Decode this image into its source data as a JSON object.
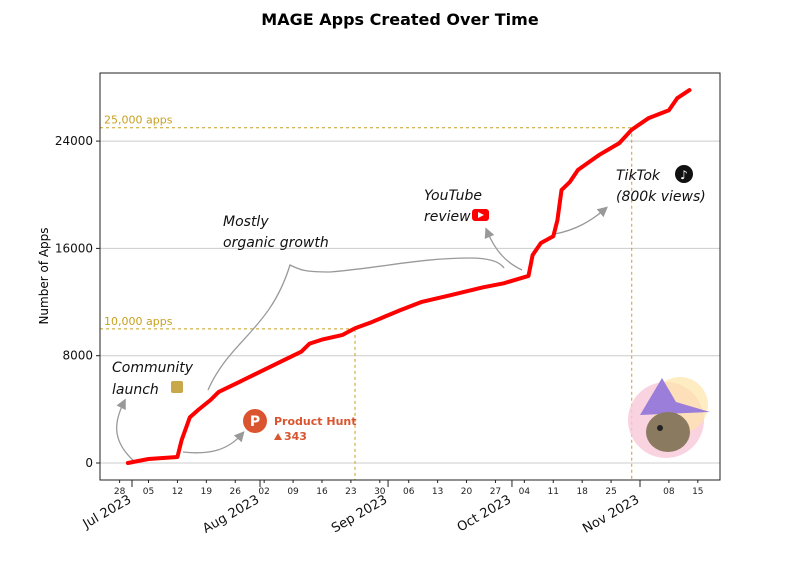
{
  "chart_data": {
    "type": "line",
    "title": "MAGE Apps Created Over Time",
    "xlabel": "",
    "ylabel": "Number of Apps",
    "ylim": [
      -1200,
      29000
    ],
    "xlim": [
      "2023-06-26",
      "2023-11-19"
    ],
    "yticks": [
      0,
      8000,
      16000,
      24000
    ],
    "ytick_labels": [
      "0",
      "8000",
      "16000",
      "24000"
    ],
    "grid": "horizontal",
    "line_color": "#ff0000",
    "minor_ticks": [
      {
        "date": "2023-06-28",
        "label": "28"
      },
      {
        "date": "2023-07-05",
        "label": "05"
      },
      {
        "date": "2023-07-12",
        "label": "12"
      },
      {
        "date": "2023-07-19",
        "label": "19"
      },
      {
        "date": "2023-07-26",
        "label": "26"
      },
      {
        "date": "2023-08-02",
        "label": "02"
      },
      {
        "date": "2023-08-09",
        "label": "09"
      },
      {
        "date": "2023-08-16",
        "label": "16"
      },
      {
        "date": "2023-08-23",
        "label": "23"
      },
      {
        "date": "2023-08-30",
        "label": "30"
      },
      {
        "date": "2023-09-06",
        "label": "06"
      },
      {
        "date": "2023-09-13",
        "label": "13"
      },
      {
        "date": "2023-09-20",
        "label": "20"
      },
      {
        "date": "2023-09-27",
        "label": "27"
      },
      {
        "date": "2023-10-04",
        "label": "04"
      },
      {
        "date": "2023-10-11",
        "label": "11"
      },
      {
        "date": "2023-10-18",
        "label": "18"
      },
      {
        "date": "2023-10-25",
        "label": "25"
      },
      {
        "date": "2023-11-08",
        "label": "08"
      },
      {
        "date": "2023-11-15",
        "label": "15"
      }
    ],
    "major_ticks": [
      {
        "date": "2023-07-01",
        "label": "Jul 2023"
      },
      {
        "date": "2023-08-01",
        "label": "Aug 2023"
      },
      {
        "date": "2023-09-01",
        "label": "Sep 2023"
      },
      {
        "date": "2023-10-01",
        "label": "Oct 2023"
      },
      {
        "date": "2023-11-01",
        "label": "Nov 2023"
      }
    ],
    "series": [
      {
        "x": [
          "2023-06-30",
          "2023-07-05",
          "2023-07-12",
          "2023-07-13",
          "2023-07-15",
          "2023-07-17",
          "2023-07-20",
          "2023-07-22",
          "2023-07-27",
          "2023-08-01",
          "2023-08-06",
          "2023-08-11",
          "2023-08-13",
          "2023-08-16",
          "2023-08-21",
          "2023-08-24",
          "2023-08-28",
          "2023-09-04",
          "2023-09-09",
          "2023-09-16",
          "2023-09-24",
          "2023-09-29",
          "2023-10-05",
          "2023-10-06",
          "2023-10-08",
          "2023-10-11",
          "2023-10-12",
          "2023-10-13",
          "2023-10-15",
          "2023-10-17",
          "2023-10-22",
          "2023-10-27",
          "2023-10-30",
          "2023-11-03",
          "2023-11-08",
          "2023-11-10",
          "2023-11-13"
        ],
        "values": [
          0,
          300,
          450,
          1700,
          3400,
          3950,
          4700,
          5300,
          6050,
          6800,
          7550,
          8300,
          8900,
          9200,
          9550,
          10050,
          10500,
          11400,
          12000,
          12500,
          13100,
          13400,
          13950,
          15500,
          16400,
          16900,
          18100,
          20350,
          20950,
          21850,
          22950,
          23850,
          24850,
          25700,
          26300,
          27200,
          27800
        ]
      }
    ],
    "reference_lines": [
      {
        "value": 10000,
        "label": "10,000 apps",
        "date": "2023-08-24"
      },
      {
        "value": 25000,
        "label": "25,000 apps",
        "date": "2023-10-30"
      }
    ],
    "reference_color": "#c8a020",
    "annotations": {
      "community": [
        "Community",
        "launch"
      ],
      "organic": [
        "Mostly",
        "organic growth"
      ],
      "youtube": [
        "YouTube",
        "review"
      ],
      "tiktok": [
        "TikTok",
        "(800k views)"
      ],
      "product_hunt": {
        "name": "Product Hunt",
        "votes": "343",
        "color": "#da552f"
      }
    }
  }
}
